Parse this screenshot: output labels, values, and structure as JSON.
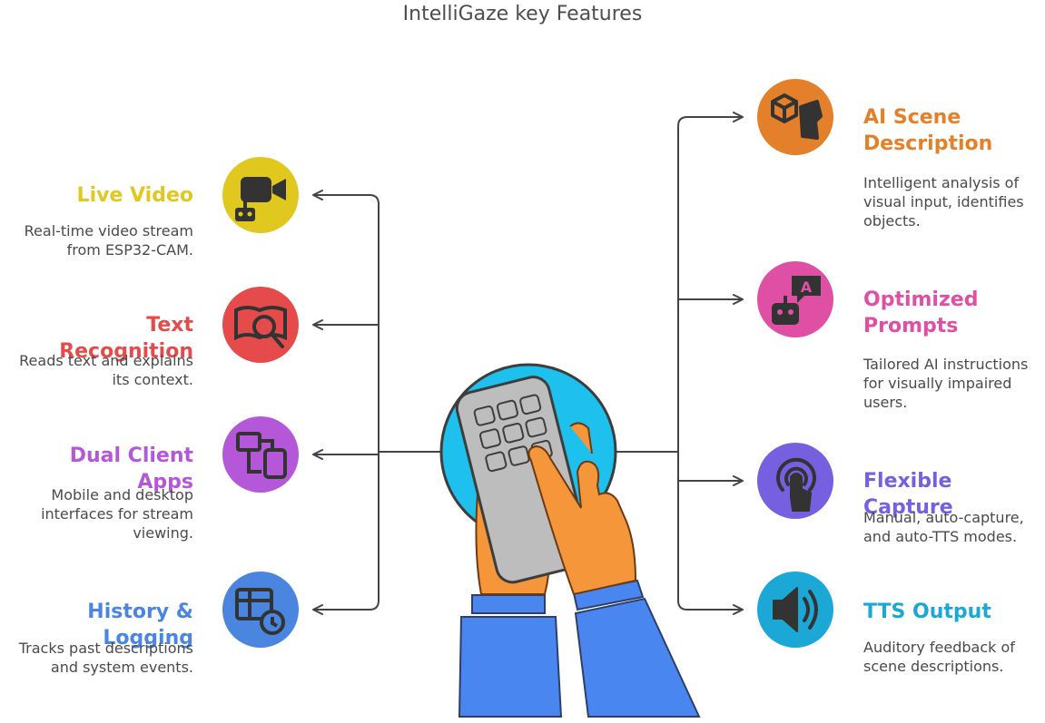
{
  "title": "IntelliGaze key Features",
  "features_left": [
    {
      "title": "Live Video",
      "description": "Real-time video stream from ESP32-CAM.",
      "color": "#e0c81f",
      "icon": "video-camera-robot-icon"
    },
    {
      "title": "Text Recognition",
      "description": "Reads text and explains its context.",
      "color": "#e64b4b",
      "icon": "book-text-search-icon"
    },
    {
      "title": "Dual Client Apps",
      "description": "Mobile and desktop interfaces for stream viewing.",
      "color": "#b557d9",
      "icon": "devices-icon"
    },
    {
      "title": "History & Logging",
      "description": "Tracks past descriptions and system events.",
      "color": "#4a86e0",
      "icon": "table-clock-icon"
    }
  ],
  "features_right": [
    {
      "title": "AI Scene Description",
      "description": "Intelligent analysis of visual input, identifies objects.",
      "color": "#e5802a",
      "icon": "cube-head-icon"
    },
    {
      "title": "Optimized Prompts",
      "description": "Tailored AI instructions for visually impaired users.",
      "color": "#df4fa4",
      "icon": "robot-chat-icon"
    },
    {
      "title": "Flexible Capture",
      "description": "Manual, auto-capture, and auto-TTS modes.",
      "color": "#7760e0",
      "icon": "tap-gesture-icon"
    },
    {
      "title": "TTS Output",
      "description": "Auditory feedback of scene descriptions.",
      "color": "#1ba8d6",
      "icon": "speaker-icon"
    }
  ],
  "center": {
    "icon": "hand-keypad-icon",
    "accent": "#1ec0ee",
    "skin": "#f5963a",
    "sleeve": "#4a86f0"
  }
}
